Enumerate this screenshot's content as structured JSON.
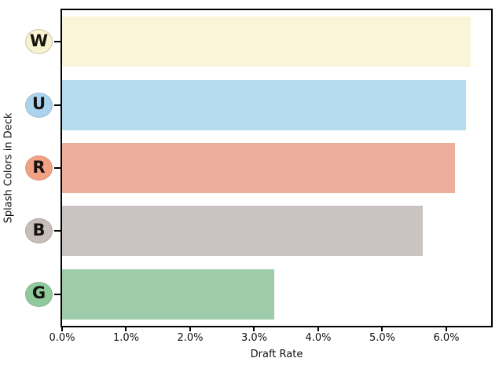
{
  "chart_data": {
    "type": "bar",
    "orientation": "horizontal",
    "title": "",
    "xlabel": "Draft Rate",
    "ylabel": "Splash Colors in Deck",
    "categories": [
      "W",
      "U",
      "R",
      "B",
      "G"
    ],
    "values": [
      6.38,
      6.31,
      6.13,
      5.63,
      3.31
    ],
    "value_unit": "%",
    "xlim": [
      0,
      6.7
    ],
    "xticks": [
      {
        "value": 0,
        "label": "0.0%"
      },
      {
        "value": 1,
        "label": "1.0%"
      },
      {
        "value": 2,
        "label": "2.0%"
      },
      {
        "value": 3,
        "label": "3.0%"
      },
      {
        "value": 4,
        "label": "4.0%"
      },
      {
        "value": 5,
        "label": "5.0%"
      },
      {
        "value": 6,
        "label": "6.0%"
      }
    ],
    "grid": false,
    "legend_position": "none",
    "bar_colors": [
      "#FAF5D9",
      "#B5DCEE",
      "#EDAE9B",
      "#C9C4C2",
      "#9ECCAA"
    ],
    "icon_styles": [
      {
        "fill": "#F8F2CE",
        "border": "#C9C6B0"
      },
      {
        "fill": "#AAD4EE",
        "border": "#9DBACD"
      },
      {
        "fill": "#F2A183",
        "border": "#D39C86"
      },
      {
        "fill": "#C7BEBB",
        "border": "#ACA5A2"
      },
      {
        "fill": "#8FCA9C",
        "border": "#8FAF97"
      }
    ],
    "colors": {
      "spine": "#000000",
      "tick": "#000000",
      "text": "#111111",
      "background": "#ffffff"
    }
  }
}
